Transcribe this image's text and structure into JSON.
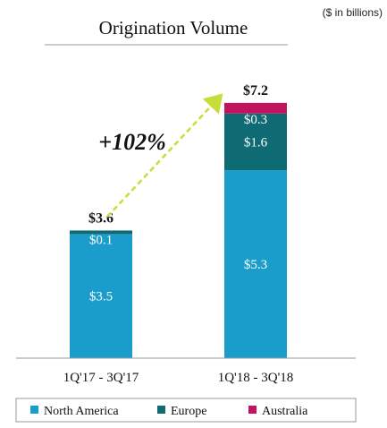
{
  "chart_data": {
    "type": "bar",
    "stacked": true,
    "title": "Origination Volume",
    "unit_note": "($ in billions)",
    "categories": [
      "1Q'17 - 3Q'17",
      "1Q'18 - 3Q'18"
    ],
    "series": [
      {
        "name": "North America",
        "color": "#1a9dca",
        "values": [
          3.5,
          5.3
        ],
        "labels": [
          "$3.5",
          "$5.3"
        ]
      },
      {
        "name": "Europe",
        "color": "#0f6b73",
        "values": [
          0.1,
          1.6
        ],
        "labels": [
          "$0.1",
          "$1.6"
        ]
      },
      {
        "name": "Australia",
        "color": "#c4135e",
        "values": [
          0,
          0.3
        ],
        "labels": [
          "",
          "$0.3"
        ]
      }
    ],
    "totals": [
      "$3.6",
      "$7.2"
    ],
    "growth_label": "+102%",
    "growth_arrow_color": "#c8dc3c",
    "legend_position": "bottom",
    "grid": false
  }
}
